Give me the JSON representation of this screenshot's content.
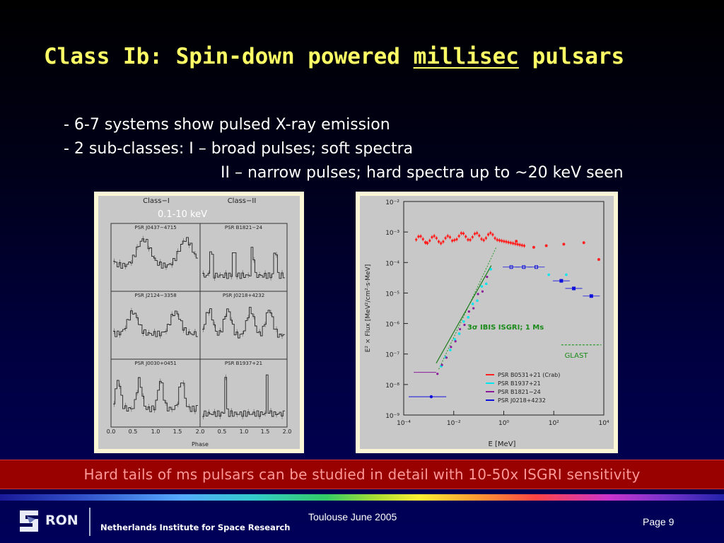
{
  "slide": {
    "title_prefix": "Class Ib: Spin-down powered ",
    "title_underlined": "millisec",
    "title_suffix": " pulsars",
    "bullets": [
      "- 6-7 systems show pulsed X-ray emission",
      "- 2 sub-classes:  I – broad pulses; soft spectra",
      "II – narrow pulses; hard spectra up to ~20 keV seen"
    ],
    "banner": "Hard tails of ms pulsars can be studied in detail with 10-50x ISGRI sensitivity"
  },
  "left_figure": {
    "class_i_header": "Class−I",
    "class_ii_header": "Class−II",
    "energy_label": "0.1-10 keV",
    "pulsars": [
      "PSR J0437−4715",
      "PSR B1821−24",
      "PSR J2124−3358",
      "PSR J0218+4232",
      "PSR J0030+0451",
      "PSR B1937+21"
    ],
    "phase_ticks": [
      "0.0",
      "0.5",
      "1.0",
      "1.5",
      "2.0",
      "0.5",
      "1.0",
      "1.5",
      "2.0"
    ],
    "xlabel": "Phase"
  },
  "right_figure": {
    "ylabel": "E² × Flux [MeV²/cm²·s·MeV]",
    "xlabel": "E [MeV]",
    "y_ticks": [
      "10⁻²",
      "10⁻³",
      "10⁻⁴",
      "10⁻⁵",
      "10⁻⁶",
      "10⁻⁷",
      "10⁻⁸",
      "10⁻⁹"
    ],
    "x_ticks": [
      "10⁻⁴",
      "10⁻²",
      "10⁰",
      "10²",
      "10⁴"
    ],
    "ibis_label": "3σ IBIS ISGRI; 1 Ms",
    "glast_label": "GLAST",
    "legend": [
      {
        "name": "PSR B0531+21 (Crab)",
        "color": "#ff2020"
      },
      {
        "name": "PSR B1937+21",
        "color": "#00e5ee"
      },
      {
        "name": "PSR B1821−24",
        "color": "#8b1a9a"
      },
      {
        "name": "PSR J0218+4232",
        "color": "#1010dd"
      }
    ]
  },
  "footer": {
    "logo_text": "RON",
    "org": "Netherlands Institute for Space Research",
    "center": "Toulouse June 2005",
    "page": "Page 9"
  }
}
